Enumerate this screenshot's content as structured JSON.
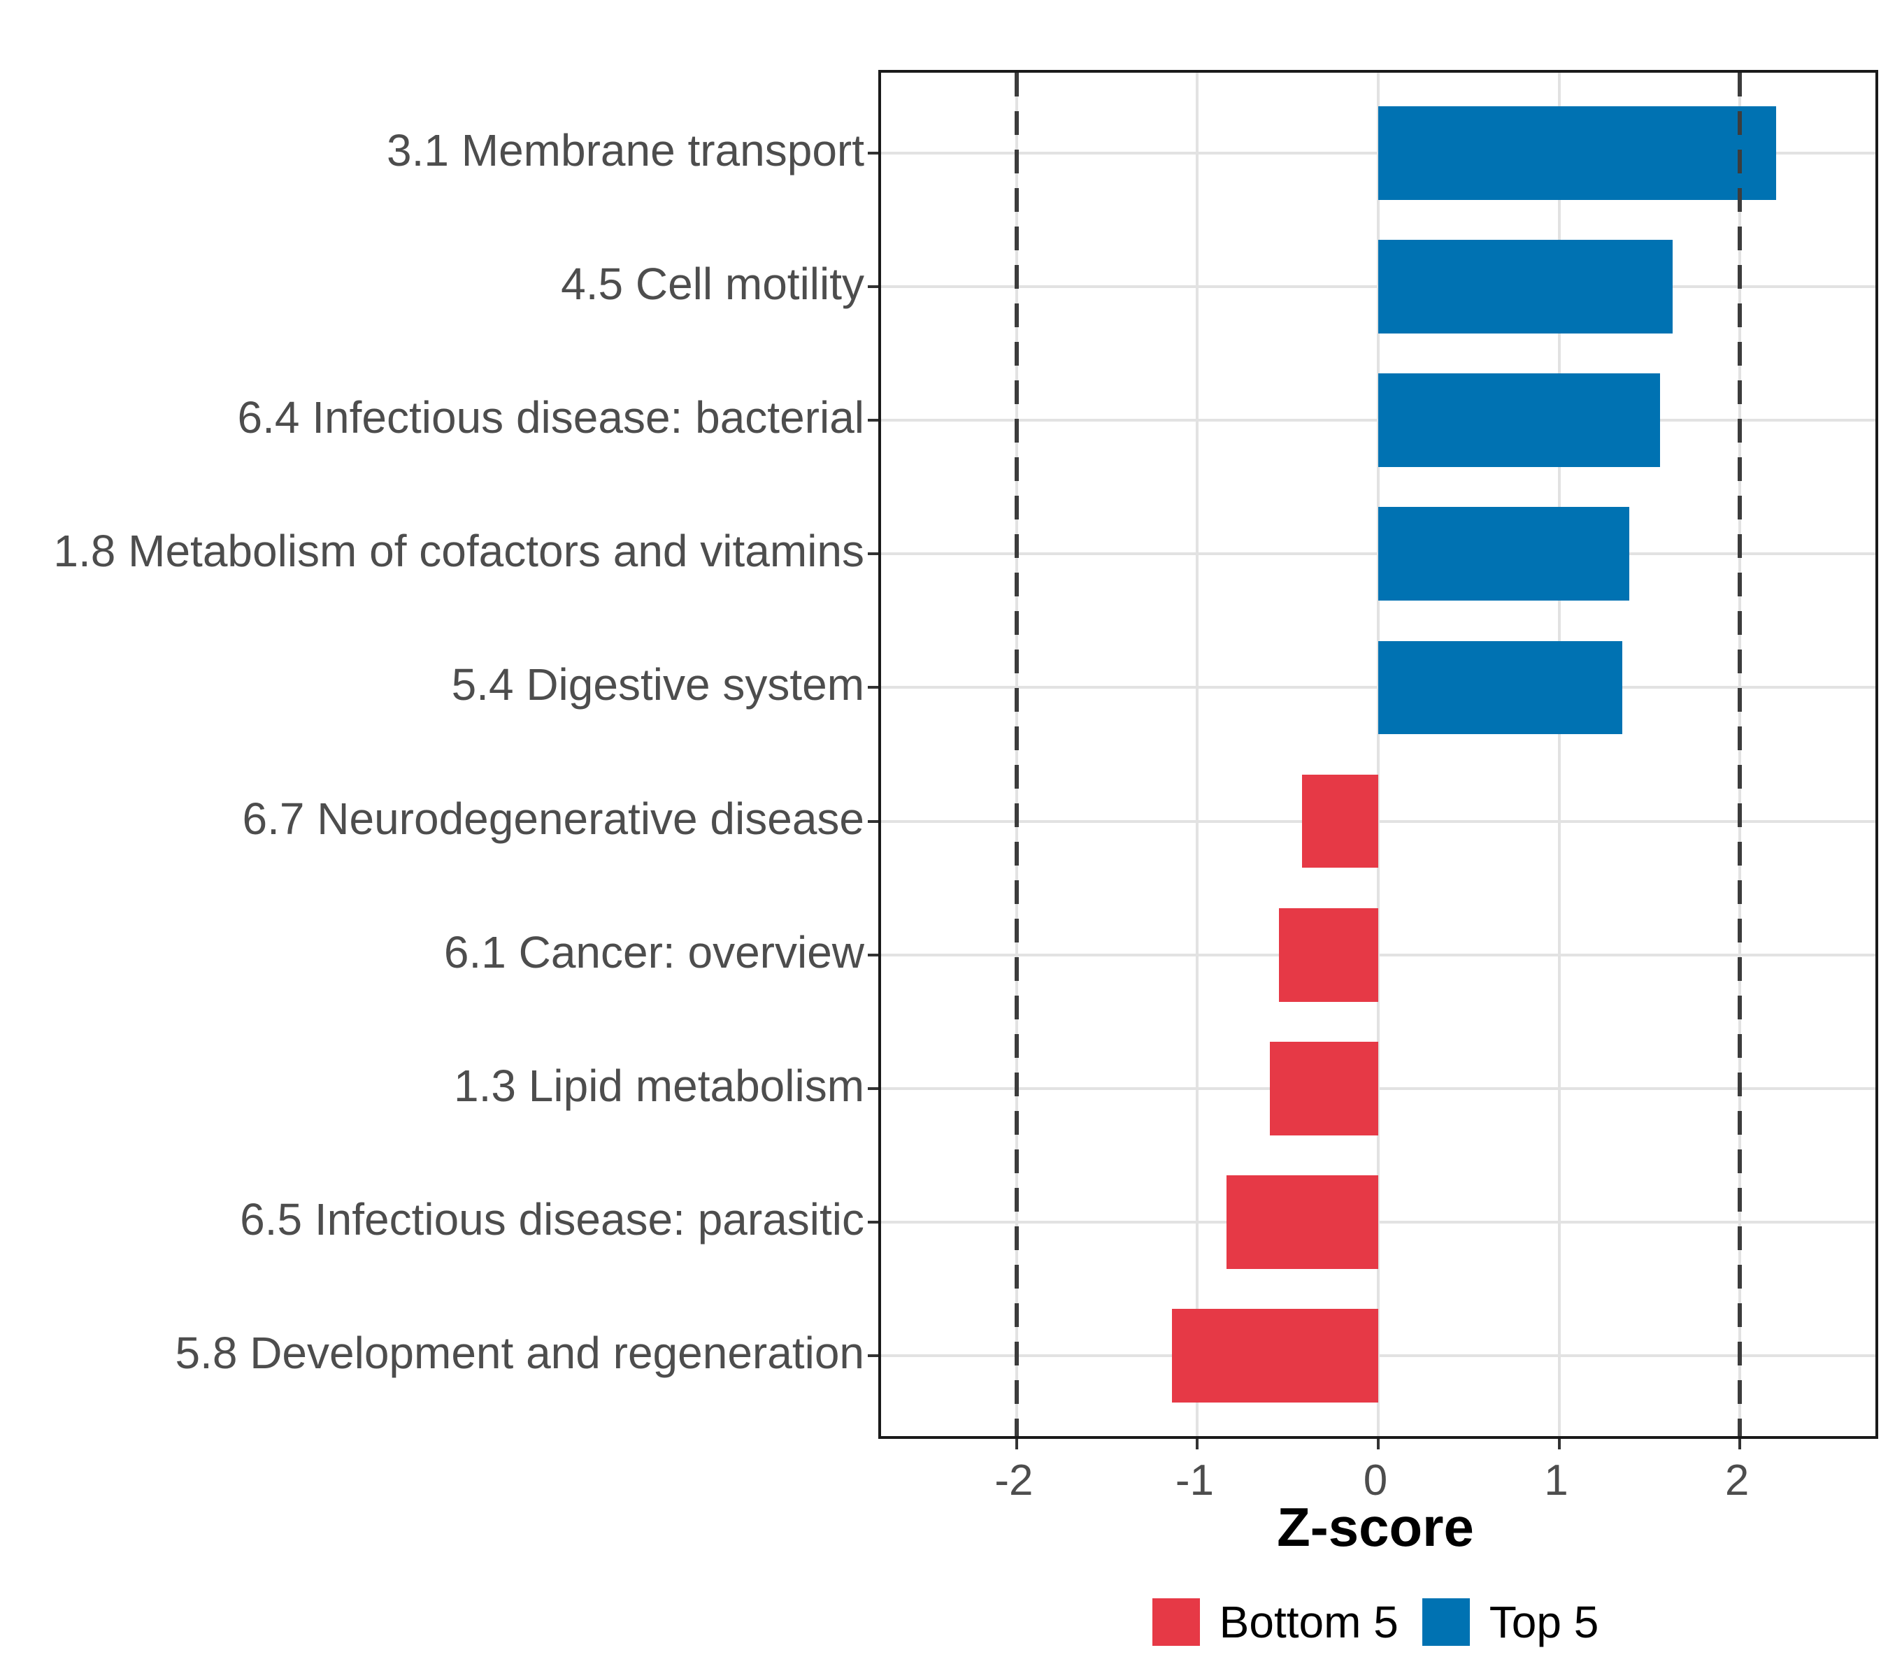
{
  "chart_data": {
    "type": "bar",
    "orientation": "horizontal",
    "title": "",
    "xlabel": "Z-score",
    "ylabel": "",
    "categories": [
      "3.1 Membrane transport",
      "4.5 Cell motility",
      "6.4 Infectious disease: bacterial",
      "1.8 Metabolism of cofactors and vitamins",
      "5.4 Digestive system",
      "6.7 Neurodegenerative disease",
      "6.1 Cancer: overview",
      "1.3 Lipid metabolism",
      "6.5 Infectious disease: parasitic",
      "5.8 Development and regeneration"
    ],
    "series": [
      {
        "name": "Z-score",
        "values": [
          2.2,
          1.63,
          1.56,
          1.39,
          1.35,
          -0.42,
          -0.55,
          -0.6,
          -0.84,
          -1.14
        ],
        "groups": [
          "Top 5",
          "Top 5",
          "Top 5",
          "Top 5",
          "Top 5",
          "Bottom 5",
          "Bottom 5",
          "Bottom 5",
          "Bottom 5",
          "Bottom 5"
        ]
      }
    ],
    "x_ticks": [
      -2,
      -1,
      0,
      1,
      2
    ],
    "xlim": [
      -2.75,
      2.75
    ],
    "reference_lines": [
      -2,
      2
    ],
    "bar_width_fraction": 0.7,
    "grid": "major-only",
    "legend_position": "bottom",
    "legend": [
      {
        "label": "Bottom 5",
        "color": "#E63946"
      },
      {
        "label": "Top 5",
        "color": "#0072B2"
      }
    ],
    "group_colors": {
      "Bottom 5": "#E63946",
      "Top 5": "#0072B2"
    }
  },
  "style_colors": {
    "panel_border": "#1a1a1a",
    "gridline": "#e2e2e2",
    "reference_line": "#3c3c3c",
    "axis_text": "#4d4d4d",
    "tick_mark": "#333333",
    "axis_title": "#000000"
  }
}
